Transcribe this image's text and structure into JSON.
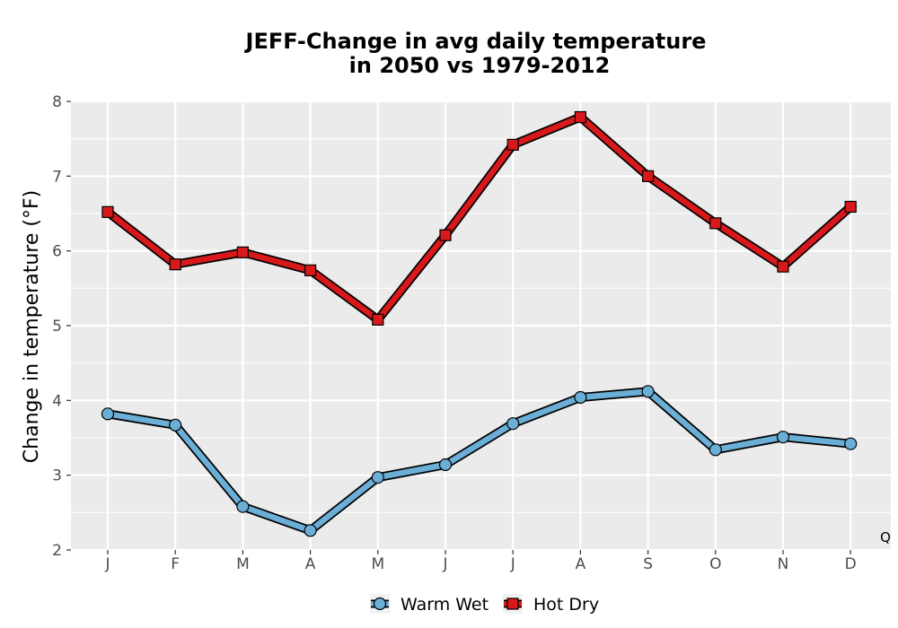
{
  "chart_data": {
    "type": "line",
    "title_line1": "JEFF-Change in avg daily temperature",
    "title_line2": "in 2050 vs 1979-2012",
    "xlabel": "",
    "ylabel": "Change in temperature (°F)",
    "categories": [
      "J",
      "F",
      "M",
      "A",
      "M",
      "J",
      "J",
      "A",
      "S",
      "O",
      "N",
      "D"
    ],
    "ylim": [
      2,
      8
    ],
    "yticks": [
      "2",
      "3",
      "4",
      "5",
      "6",
      "7",
      "8"
    ],
    "grid": true,
    "legend_position": "bottom",
    "corner_note": "Q",
    "series": [
      {
        "name": "Warm Wet",
        "marker": "circle",
        "color": "#6baed6",
        "values": [
          3.82,
          3.67,
          2.58,
          2.26,
          2.97,
          3.14,
          3.69,
          4.04,
          4.12,
          3.34,
          3.51,
          3.42
        ]
      },
      {
        "name": "Hot Dry",
        "marker": "square",
        "color": "#d7191c",
        "values": [
          6.52,
          5.82,
          5.98,
          5.74,
          5.08,
          6.21,
          7.42,
          7.79,
          7.0,
          6.37,
          5.79,
          6.59
        ]
      }
    ]
  },
  "colors": {
    "panel_background": "#ebebeb",
    "grid": "#ffffff",
    "outline": "#000000"
  }
}
